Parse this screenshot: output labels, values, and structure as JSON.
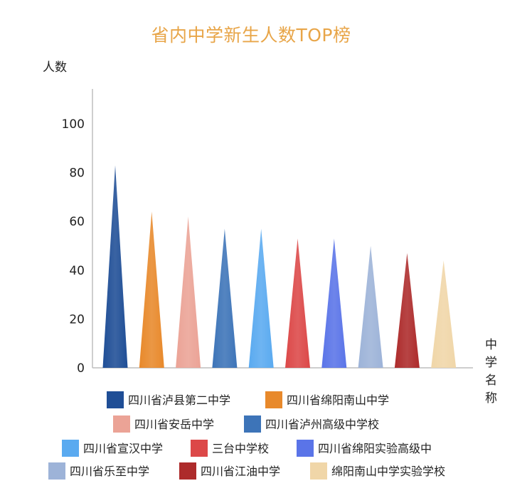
{
  "chart_data": {
    "type": "bar",
    "title": "省内中学新生人数TOP榜",
    "ylabel": "人数",
    "xlabel": "中学名称",
    "ylim": [
      0,
      110
    ],
    "yticks": [
      0,
      20,
      40,
      60,
      80,
      100
    ],
    "grid": false,
    "legend_position": "bottom",
    "categories": [
      "四川省泸县第二中学",
      "四川省绵阳南山中学",
      "四川省安岳中学",
      "四川省泸州高级中学校",
      "四川省宣汉中学",
      "三台中学校",
      "四川省绵阳实验高级中",
      "四川省乐至中学",
      "四川省江油中学",
      "绵阳南山中学实验学校"
    ],
    "values": [
      83,
      64,
      62,
      57,
      57,
      53,
      53,
      50,
      47,
      44
    ],
    "colors": [
      "#1f4e96",
      "#e8892b",
      "#eba396",
      "#3d74b8",
      "#5aaaf0",
      "#dc4848",
      "#5a74e8",
      "#9db3d8",
      "#ad2b2b",
      "#f0d6a8"
    ]
  }
}
